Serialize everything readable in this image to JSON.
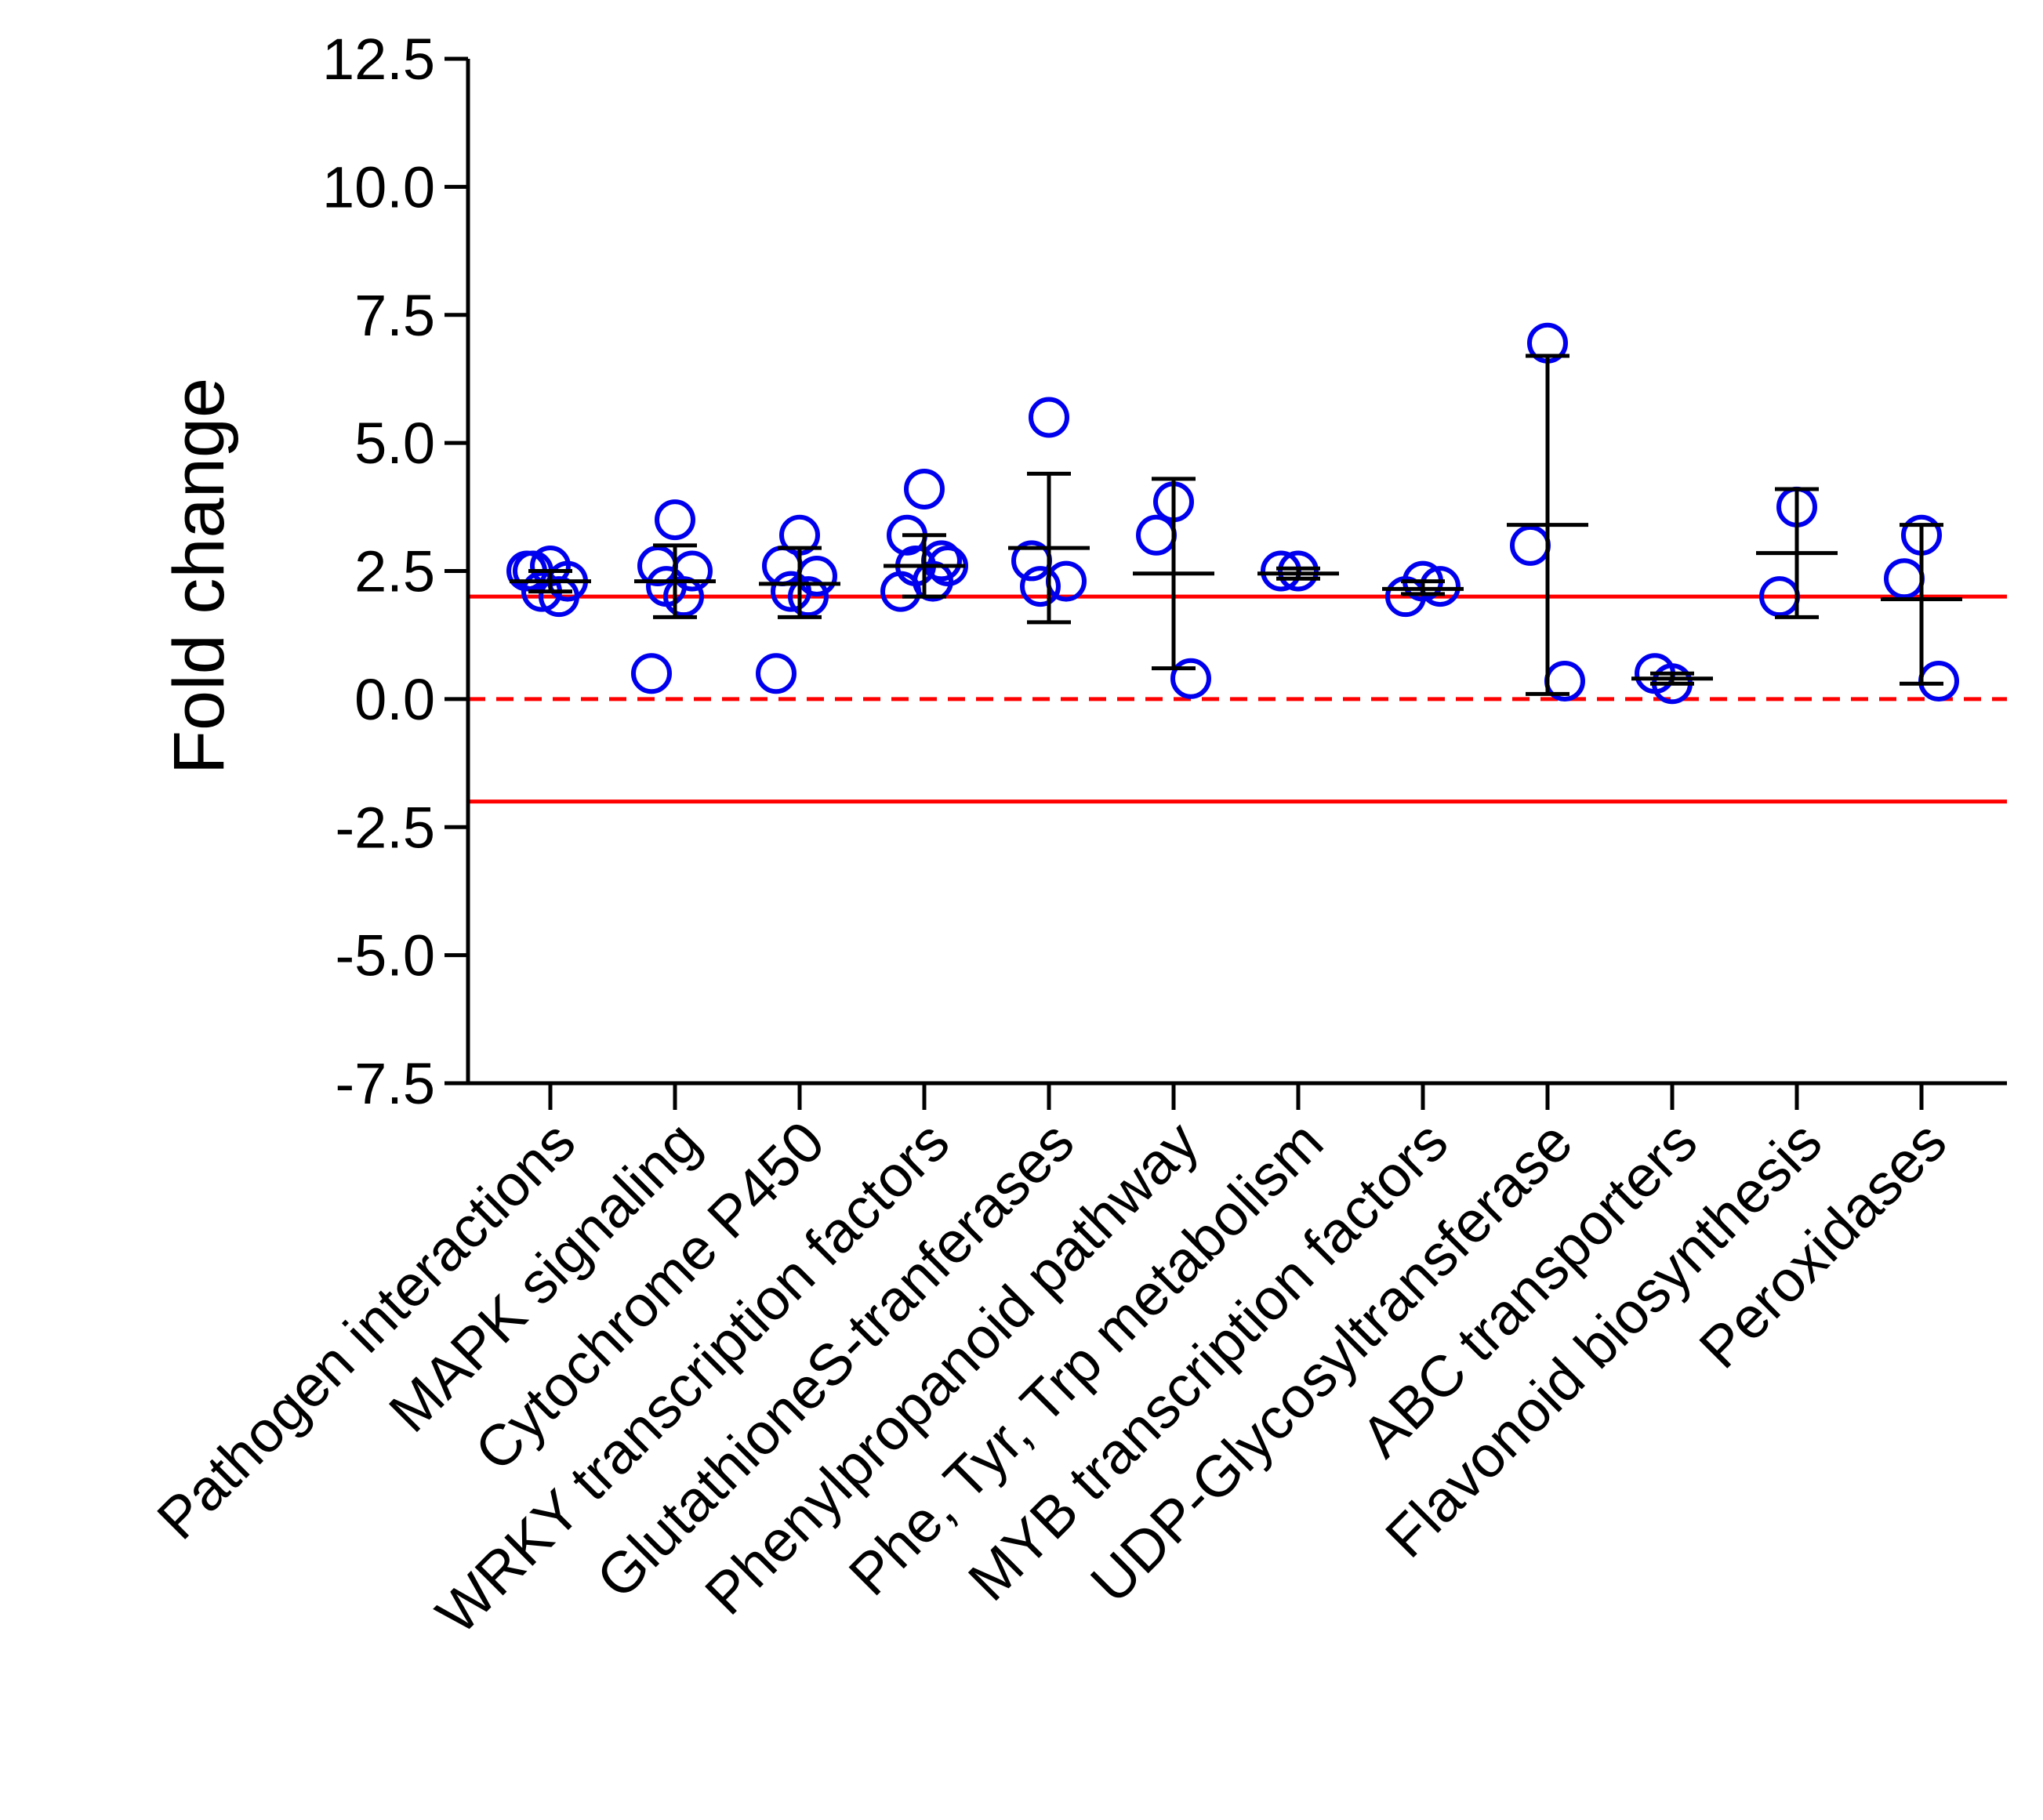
{
  "chart_data": {
    "type": "scatter",
    "ylabel": "Fold change",
    "xlabel": "",
    "ylim": [
      -7.5,
      12.5
    ],
    "yticks": [
      -7.5,
      -5.0,
      -2.5,
      0.0,
      2.5,
      5.0,
      7.5,
      10.0,
      12.5
    ],
    "ytick_labels": [
      "-7.5",
      "-5.0",
      "-2.5",
      "0.0",
      "2.5",
      "5.0",
      "7.5",
      "10.0",
      "12.5"
    ],
    "reference_lines": [
      {
        "y": 2.0,
        "style": "solid",
        "color": "#ff0000"
      },
      {
        "y": 0.0,
        "style": "dashed",
        "color": "#ff0000"
      },
      {
        "y": -2.0,
        "style": "solid",
        "color": "#ff0000"
      }
    ],
    "marker_color": "#0000ee",
    "summary_color": "#000000",
    "categories": [
      "Pathogen interactions",
      "MAPK signaling",
      "Cytochrome P450",
      "WRKY transcription factors",
      "GlutathioneS-tranferases",
      "Phenylpropanoid pathway",
      "Phe, Tyr, Trp metabolism",
      "MYB transcription factors",
      "UDP-Glycosyltransferase",
      "ABC transporters",
      "Flavonoid biosynthesis",
      "Peroxidases"
    ],
    "groups": [
      {
        "points": [
          2.6,
          2.5,
          2.3,
          2.1,
          2.0,
          2.5
        ],
        "mean": 2.3,
        "err_low": 2.1,
        "err_high": 2.5
      },
      {
        "points": [
          3.5,
          2.6,
          2.5,
          2.2,
          2.0,
          0.5
        ],
        "mean": 2.3,
        "err_low": 1.6,
        "err_high": 3.0
      },
      {
        "points": [
          3.2,
          2.6,
          2.4,
          2.1,
          2.0,
          0.5
        ],
        "mean": 2.25,
        "err_low": 1.6,
        "err_high": 2.95
      },
      {
        "points": [
          4.1,
          3.2,
          2.7,
          2.6,
          2.3,
          2.1,
          2.6
        ],
        "mean": 2.6,
        "err_low": 2.0,
        "err_high": 3.2
      },
      {
        "points": [
          5.5,
          2.7,
          2.3,
          2.2
        ],
        "mean": 2.95,
        "err_low": 1.5,
        "err_high": 4.4
      },
      {
        "points": [
          3.85,
          3.2,
          0.4
        ],
        "mean": 2.45,
        "err_low": 0.6,
        "err_high": 4.3
      },
      {
        "points": [
          2.5,
          2.5
        ],
        "mean": 2.45,
        "err_low": 2.35,
        "err_high": 2.55
      },
      {
        "points": [
          2.3,
          2.0,
          2.2
        ],
        "mean": 2.15,
        "err_low": 2.05,
        "err_high": 2.3
      },
      {
        "points": [
          6.95,
          3.0,
          0.35
        ],
        "mean": 3.4,
        "err_low": 0.1,
        "err_high": 6.7
      },
      {
        "points": [
          0.3,
          0.5
        ],
        "mean": 0.4,
        "err_low": 0.3,
        "err_high": 0.5
      },
      {
        "points": [
          3.75,
          2.0
        ],
        "mean": 2.85,
        "err_low": 1.6,
        "err_high": 4.1
      },
      {
        "points": [
          3.2,
          2.35,
          0.35
        ],
        "mean": 1.95,
        "err_low": 0.3,
        "err_high": 3.4
      }
    ]
  }
}
